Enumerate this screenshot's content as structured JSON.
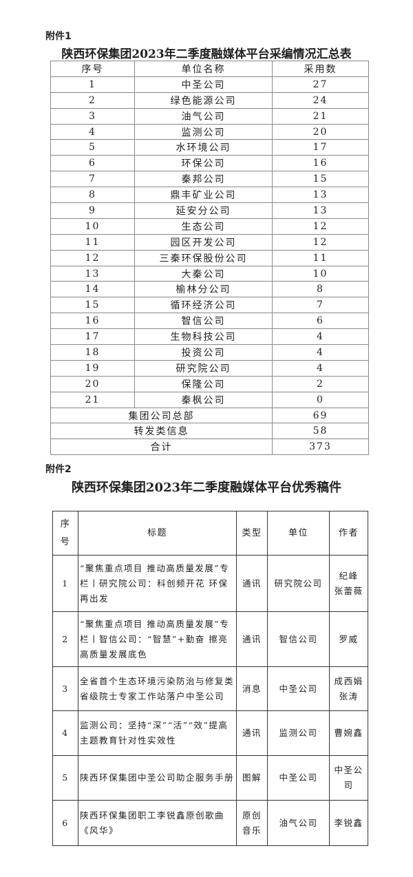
{
  "attachment1": {
    "label": "附件1",
    "title": "陕西环保集团2023年二季度融媒体平台采编情况汇总表",
    "headers": [
      "序号",
      "单位名称",
      "采用数"
    ],
    "rows": [
      [
        "1",
        "中圣公司",
        "27"
      ],
      [
        "2",
        "绿色能源公司",
        "24"
      ],
      [
        "3",
        "油气公司",
        "21"
      ],
      [
        "4",
        "监测公司",
        "20"
      ],
      [
        "5",
        "水环境公司",
        "17"
      ],
      [
        "6",
        "环保公司",
        "16"
      ],
      [
        "7",
        "秦邦公司",
        "15"
      ],
      [
        "8",
        "鼎丰矿业公司",
        "13"
      ],
      [
        "9",
        "延安分公司",
        "13"
      ],
      [
        "10",
        "生态公司",
        "12"
      ],
      [
        "11",
        "园区开发公司",
        "12"
      ],
      [
        "12",
        "三秦环保股份公司",
        "11"
      ],
      [
        "13",
        "大秦公司",
        "10"
      ],
      [
        "14",
        "榆林分公司",
        "8"
      ],
      [
        "15",
        "循环经济公司",
        "7"
      ],
      [
        "16",
        "智信公司",
        "6"
      ],
      [
        "17",
        "生物科技公司",
        "4"
      ],
      [
        "18",
        "投资公司",
        "4"
      ],
      [
        "19",
        "研究院公司",
        "4"
      ],
      [
        "20",
        "保隆公司",
        "2"
      ],
      [
        "21",
        "秦枫公司",
        "0"
      ]
    ],
    "summary_rows": [
      [
        "集团公司总部",
        "69"
      ],
      [
        "转发类信息",
        "58"
      ],
      [
        "合计",
        "373"
      ]
    ]
  },
  "attachment2": {
    "label": "附件2",
    "title": "陕西环保集团2023年二季度融媒体平台优秀稿件",
    "headers": [
      "序号",
      "标题",
      "类型",
      "单位",
      "作者"
    ],
    "rows": [
      [
        "1",
        "“聚焦重点项目 推动高质量发展”专栏丨研究院公司：科创频开花 环保再出发",
        "通讯",
        "研究院公司",
        "纪峰 张蕾薇"
      ],
      [
        "2",
        "“聚焦重点项目 推动高质量发展”专栏丨智信公司：“智慧”+勤奋 擦亮高质量发展底色",
        "通讯",
        "智信公司",
        "罗威"
      ],
      [
        "3",
        "全省首个生态环境污染防治与修复类省级院士专家工作站落户中圣公司",
        "消息",
        "中圣公司",
        "成西娟 张涛"
      ],
      [
        "4",
        "监测公司：坚持“深”“活”“效”提高主题教育针对性实效性",
        "通讯",
        "监测公司",
        "曹婉鑫"
      ],
      [
        "5",
        "陕西环保集团中圣公司助企服务手册",
        "图解",
        "中圣公司",
        "中圣公司"
      ],
      [
        "6",
        "陕西环保集团职工李锐鑫原创歌曲《风华》",
        "原创音乐",
        "油气公司",
        "李锐鑫"
      ]
    ]
  }
}
